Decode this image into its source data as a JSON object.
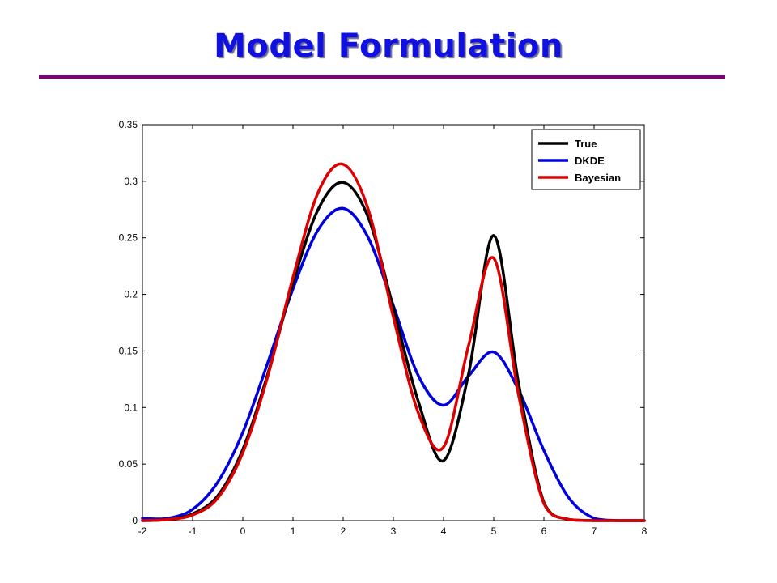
{
  "slide": {
    "title": "Model Formulation",
    "title_color": "#1010e0",
    "rule_color": "#800080"
  },
  "chart_data": {
    "type": "line",
    "title": "",
    "xlabel": "",
    "ylabel": "",
    "xlim": [
      -2,
      8
    ],
    "ylim": [
      0,
      0.35
    ],
    "xticks": [
      -2,
      -1,
      0,
      1,
      2,
      3,
      4,
      5,
      6,
      7,
      8
    ],
    "yticks": [
      0,
      0.05,
      0.1,
      0.15,
      0.2,
      0.25,
      0.3,
      0.35
    ],
    "xtick_labels": [
      "-2",
      "-1",
      "0",
      "1",
      "2",
      "3",
      "4",
      "5",
      "6",
      "7",
      "8"
    ],
    "ytick_labels": [
      "0",
      "0.05",
      "0.1",
      "0.15",
      "0.2",
      "0.25",
      "0.3",
      "0.35"
    ],
    "grid": false,
    "legend_position": "top-right",
    "x": [
      -2,
      -1.5,
      -1,
      -0.5,
      0,
      0.5,
      1,
      1.5,
      2,
      2.5,
      3,
      3.5,
      4,
      4.5,
      5,
      5.5,
      6,
      6.5,
      7,
      7.5,
      8
    ],
    "series": [
      {
        "name": "True",
        "color": "#000000",
        "values": [
          0.0,
          0.001,
          0.006,
          0.022,
          0.063,
          0.13,
          0.21,
          0.275,
          0.299,
          0.268,
          0.188,
          0.105,
          0.053,
          0.13,
          0.252,
          0.12,
          0.016,
          0.001,
          0.0,
          0.0,
          0.0
        ]
      },
      {
        "name": "DKDE",
        "color": "#0000dd",
        "values": [
          0.002,
          0.002,
          0.01,
          0.034,
          0.078,
          0.14,
          0.205,
          0.257,
          0.276,
          0.25,
          0.19,
          0.128,
          0.102,
          0.128,
          0.149,
          0.115,
          0.062,
          0.02,
          0.002,
          0.0,
          0.0
        ]
      },
      {
        "name": "Bayesian",
        "color": "#dd0000",
        "values": [
          0.0,
          0.001,
          0.005,
          0.02,
          0.06,
          0.128,
          0.215,
          0.29,
          0.315,
          0.275,
          0.18,
          0.095,
          0.065,
          0.155,
          0.232,
          0.11,
          0.015,
          0.001,
          0.0,
          0.0,
          0.0
        ]
      }
    ]
  }
}
